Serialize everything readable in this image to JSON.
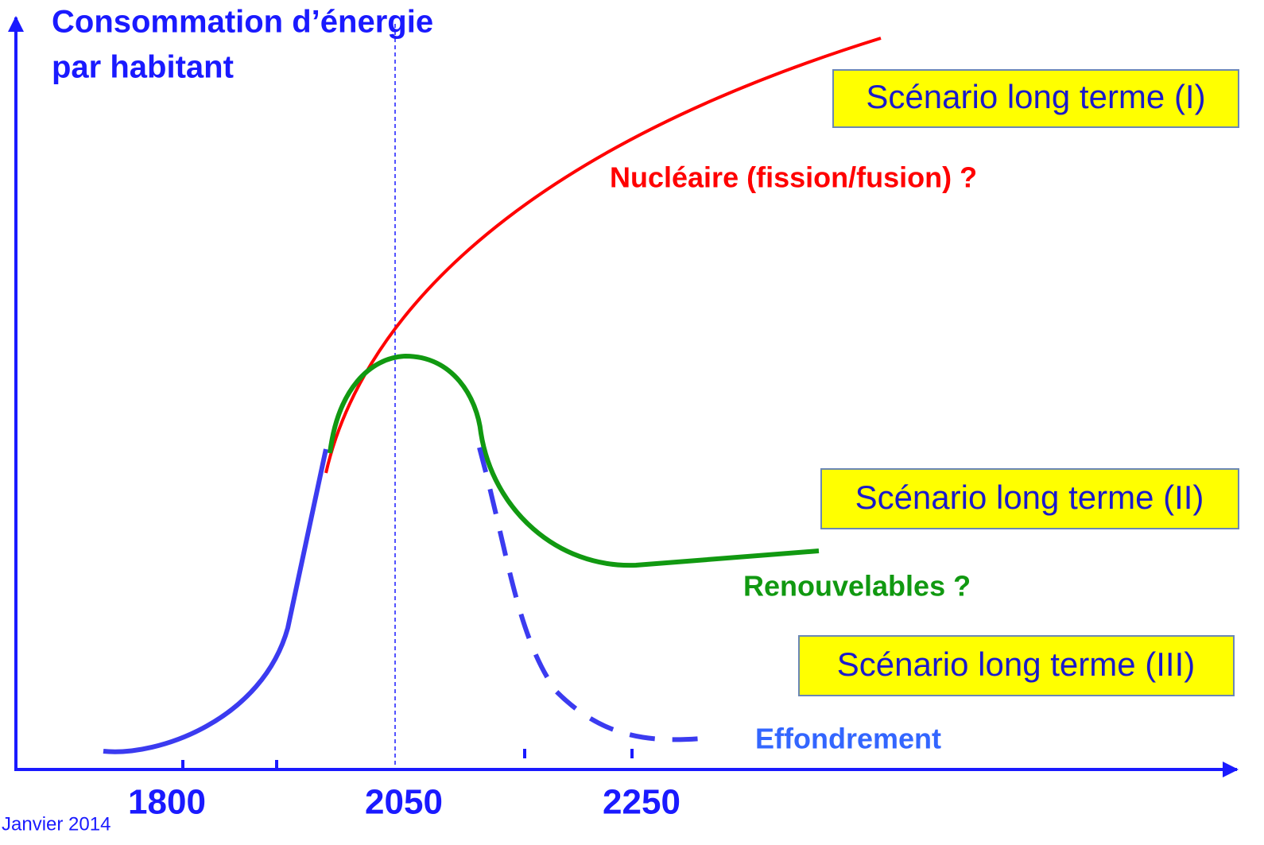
{
  "axis_title": [
    "Consommation d’énergie",
    "par habitant"
  ],
  "x_labels": [
    "1800",
    "2050",
    "2250"
  ],
  "scenarios": [
    "Scénario long terme (I)",
    "Scénario long terme (II)",
    "Scénario long terme (III)"
  ],
  "curve_labels": {
    "nuclear": "Nucléaire (fission/fusion) ?",
    "renewables": "Renouvelables ?",
    "collapse": "Effondrement"
  },
  "footer": "Janvier 2014"
}
